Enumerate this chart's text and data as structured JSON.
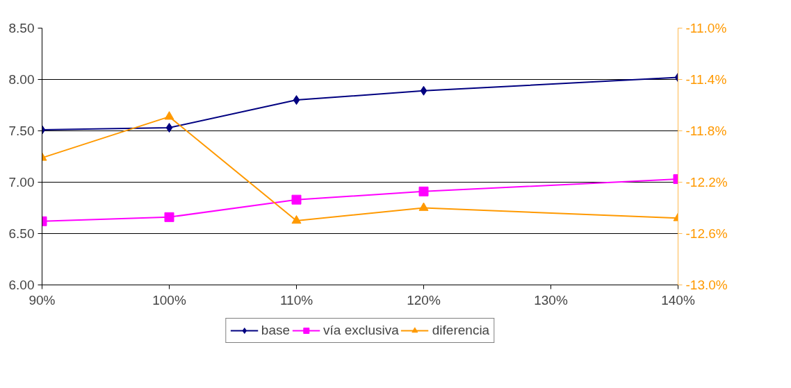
{
  "chart_data": {
    "type": "line",
    "x": [
      90,
      100,
      110,
      120,
      140
    ],
    "xlim": [
      90,
      140
    ],
    "xticks": [
      {
        "value": 90,
        "label": "90%"
      },
      {
        "value": 100,
        "label": "100%"
      },
      {
        "value": 110,
        "label": "110%"
      },
      {
        "value": 120,
        "label": "120%"
      },
      {
        "value": 130,
        "label": "130%"
      },
      {
        "value": 140,
        "label": "140%"
      }
    ],
    "ylim": [
      6.0,
      8.5
    ],
    "yticks": [
      {
        "value": 6.0,
        "label": "6.00"
      },
      {
        "value": 6.5,
        "label": "6.50"
      },
      {
        "value": 7.0,
        "label": "7.00"
      },
      {
        "value": 7.5,
        "label": "7.50"
      },
      {
        "value": 8.0,
        "label": "8.00"
      },
      {
        "value": 8.5,
        "label": "8.50"
      }
    ],
    "y2lim": [
      -13.0,
      -11.0
    ],
    "y2ticks": [
      {
        "value": -13.0,
        "label": "-13.0%"
      },
      {
        "value": -12.6,
        "label": "-12.6%"
      },
      {
        "value": -12.2,
        "label": "-12.2%"
      },
      {
        "value": -11.8,
        "label": "-11.8%"
      },
      {
        "value": -11.4,
        "label": "-11.4%"
      },
      {
        "value": -11.0,
        "label": "-11.0%"
      }
    ],
    "grid": "y",
    "legend": "bottom",
    "series": [
      {
        "name": "base",
        "color": "#000080",
        "marker": "diamond",
        "values": [
          7.51,
          7.53,
          7.8,
          7.89,
          8.02
        ]
      },
      {
        "name": "vía exclusiva",
        "color": "#ff00ff",
        "marker": "square",
        "values": [
          6.62,
          6.66,
          6.83,
          6.91,
          7.03
        ]
      },
      {
        "name": "diferencia",
        "color": "#ff9900",
        "marker": "triangle",
        "axis": "y2",
        "values": [
          -12.01,
          -11.69,
          -12.5,
          -12.4,
          -12.48
        ]
      }
    ]
  }
}
